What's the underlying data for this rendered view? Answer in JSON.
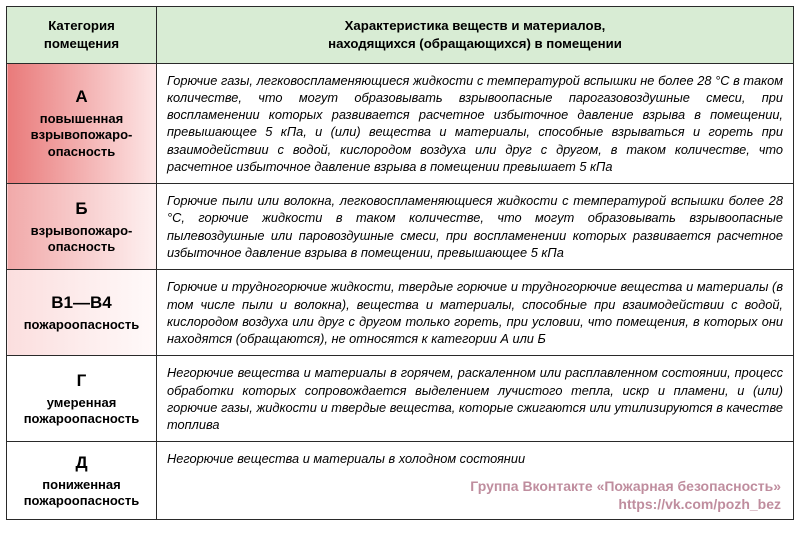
{
  "header": {
    "col1": "Категория помещения",
    "col2_line1": "Характеристика веществ и материалов,",
    "col2_line2": "находящихся (обращающихся) в помещении",
    "col1_bg": "#d8ecd4",
    "col2_bg": "#d8ecd4"
  },
  "rows": [
    {
      "letter": "А",
      "label": "повышенная взрывопожаро-опасность",
      "desc": "Горючие газы, легковоспламеняющиеся жидкости с температурой вспышки не более 28 °С в таком количестве, что могут образовывать взрывоопасные парогазовоздушные смеси, при воспламенении которых развивается расчетное избыточное давление взрыва в помещении, превышающее 5 кПа, и (или) вещества и материалы, способные взрываться и гореть при взаимодействии с водой, кислородом воздуха или друг с другом, в таком количестве, что расчетное избыточное давление взрыва в помещении превышает 5 кПа",
      "cat_bg": "linear-gradient(to right, #e97a7a 0%, #fde6e6 100%)"
    },
    {
      "letter": "Б",
      "label": "взрывопожаро-опасность",
      "desc": "Горючие пыли или волокна, легковоспламеняющиеся жидкости с температурой вспышки более 28 °С, горючие жидкости в таком количестве, что могут образовывать взрывоопасные пылевоздушные или паровоздушные смеси, при воспламенении которых развивается расчетное избыточное давление взрыва в помещении, превышающее 5 кПа",
      "cat_bg": "linear-gradient(to right, #f1a9a9 0%, #fef1f1 100%)"
    },
    {
      "letter": "В1—В4",
      "label": "пожароопасность",
      "desc": "Горючие и трудногорючие жидкости, твердые горючие и трудногорючие вещества и материалы (в том числе пыли и волокна), вещества и материалы, способные при взаимодействии с водой, кислородом воздуха или друг с другом только гореть, при условии, что помещения, в которых они находятся (обращаются), не относятся к категории А или Б",
      "cat_bg": "linear-gradient(to right, #fbdede 0%, #fffafa 100%)"
    },
    {
      "letter": "Г",
      "label": "умеренная пожароопасность",
      "desc": "Негорючие вещества и материалы в горячем, раскаленном или расплавленном состоянии, процесс обработки которых сопровождается выделением лучистого тепла, искр и пламени, и (или) горючие газы, жидкости и твердые вещества, которые сжигаются или утилизируются в качестве топлива",
      "cat_bg": "#ffffff"
    },
    {
      "letter": "Д",
      "label": "пониженная пожароопасность",
      "desc": "Негорючие вещества и материалы в холодном состоянии",
      "cat_bg": "#ffffff",
      "desc_valign": "top"
    }
  ],
  "watermark": {
    "line1": "Группа Вконтакте «Пожарная безопасность»",
    "line2": "https://vk.com/pozh_bez"
  }
}
